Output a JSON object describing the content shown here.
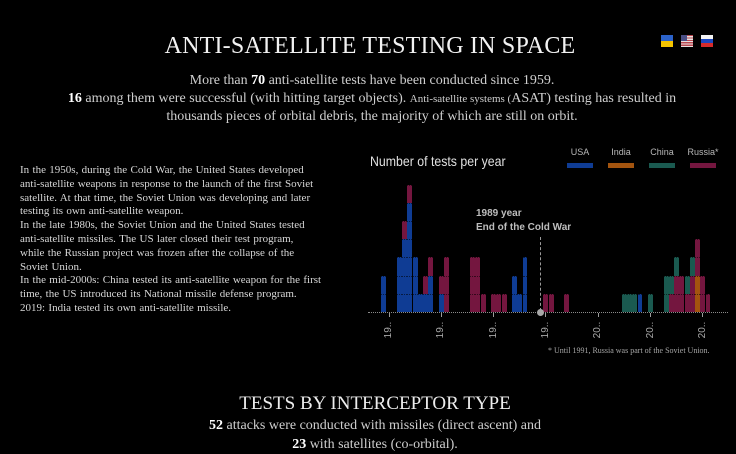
{
  "header": {
    "title": "ANTI-SATELLITE TESTING IN SPACE",
    "flags": [
      {
        "name": "ukraine",
        "label": "Ukrainian"
      },
      {
        "name": "usa",
        "label": "English"
      },
      {
        "name": "russia",
        "label": "Russian"
      }
    ]
  },
  "intro": {
    "line1": {
      "pre": "More than ",
      "num": "70",
      "post": " anti-satellite tests have been conducted since 1959."
    },
    "line2": {
      "num": "16",
      "mid": " among them were successful (with hitting target objects). ",
      "small": "Anti-satellite systems (",
      "post": "ASAT) testing has resulted in"
    },
    "line3": "thousands pieces of orbital debris, the majority of which are still on orbit."
  },
  "history": {
    "lines": [
      "In the 1950s, during the Cold War, the United States developed",
      "anti-satellite weapons in response to the launch of the first Soviet",
      "satellite. At that time, the Soviet Union was developing and later",
      "testing its own anti-satellite weapon.",
      "In the late 1980s, the Soviet Union and the United States tested",
      "anti-satellite missiles. The US later closed their test program,",
      "while the Russian project was frozen after the collapse of the",
      "Soviet Union.",
      "In the mid-2000s: China tested its anti-satellite weapon for the first",
      "time, the US introduced its National missile defense program.",
      "2019: India tested its own anti-satellite missile."
    ]
  },
  "chart_data": {
    "type": "bar",
    "stacked": true,
    "title": "Number of tests per year",
    "xlabel": "",
    "ylabel": "",
    "xlim": [
      1958,
      2022
    ],
    "ylim": [
      0,
      7
    ],
    "grid": false,
    "legend_position": "top-right",
    "x_ticks": [
      {
        "year": 1960,
        "label": "19.."
      },
      {
        "year": 1970,
        "label": "19.."
      },
      {
        "year": 1980,
        "label": "19.."
      },
      {
        "year": 1990,
        "label": "19.."
      },
      {
        "year": 2000,
        "label": "20.."
      },
      {
        "year": 2010,
        "label": "20.."
      },
      {
        "year": 2020,
        "label": "20.."
      }
    ],
    "categories": [
      1959,
      1962,
      1963,
      1964,
      1965,
      1966,
      1967,
      1968,
      1970,
      1971,
      1976,
      1977,
      1978,
      1980,
      1981,
      1982,
      1984,
      1985,
      1986,
      1990,
      1991,
      1994,
      2005,
      2006,
      2007,
      2008,
      2010,
      2013,
      2014,
      2015,
      2016,
      2017,
      2018,
      2019,
      2020,
      2021
    ],
    "series": [
      {
        "name": "USA",
        "color": "#0f3c94",
        "values": [
          2,
          3,
          4,
          6,
          3,
          1,
          1,
          2,
          1,
          0,
          0,
          0,
          0,
          0,
          0,
          0,
          2,
          1,
          3,
          0,
          0,
          0,
          0,
          0,
          0,
          1,
          0,
          0,
          0,
          0,
          0,
          0,
          0,
          0,
          0,
          0
        ]
      },
      {
        "name": "India",
        "color": "#a3540f",
        "values": [
          0,
          0,
          0,
          0,
          0,
          0,
          0,
          0,
          0,
          0,
          0,
          0,
          0,
          0,
          0,
          0,
          0,
          0,
          0,
          0,
          0,
          0,
          0,
          0,
          0,
          0,
          0,
          0,
          0,
          0,
          0,
          0,
          0,
          2,
          0,
          0
        ]
      },
      {
        "name": "Russia*",
        "color": "#74163f",
        "values": [
          0,
          0,
          1,
          1,
          0,
          0,
          1,
          1,
          1,
          3,
          3,
          3,
          1,
          1,
          1,
          1,
          0,
          0,
          0,
          1,
          1,
          1,
          0,
          0,
          0,
          0,
          0,
          0,
          1,
          2,
          2,
          1,
          2,
          2,
          2,
          1
        ]
      },
      {
        "name": "China",
        "color": "#1a5a50",
        "values": [
          0,
          0,
          0,
          0,
          0,
          0,
          0,
          0,
          0,
          0,
          0,
          0,
          0,
          0,
          0,
          0,
          0,
          0,
          0,
          0,
          0,
          0,
          1,
          1,
          1,
          0,
          1,
          2,
          1,
          1,
          0,
          1,
          1,
          0,
          0,
          0
        ]
      }
    ],
    "legend": [
      {
        "name": "USA",
        "color": "#0f3c94"
      },
      {
        "name": "India",
        "color": "#a3540f"
      },
      {
        "name": "China",
        "color": "#1a5a50"
      },
      {
        "name": "Russia*",
        "color": "#74163f"
      }
    ],
    "annotations": [
      {
        "year": 1989,
        "line1": "1989 year",
        "line2": "End of the Cold War"
      }
    ],
    "footnote": "* Until 1991, Russia was part of the Soviet Union."
  },
  "interceptor": {
    "title": "TESTS BY INTERCEPTOR TYPE",
    "line1": {
      "num": "52",
      "text": " attacks were conducted with missiles (direct ascent) and"
    },
    "line2": {
      "num": "23",
      "text": " with satellites (co-orbital)."
    }
  }
}
